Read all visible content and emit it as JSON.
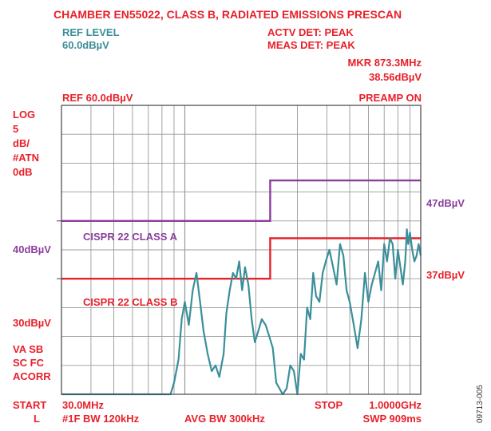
{
  "header": {
    "title": "CHAMBER EN55022, CLASS B, RADIATED EMISSIONS PRESCAN",
    "ref_level_label": "REF LEVEL",
    "ref_level_value": "60.0dBµV",
    "actv_det": "ACTV DET: PEAK",
    "meas_det": "MEAS DET: PEAK",
    "mkr_freq": "MKR 873.3MHz",
    "mkr_level": "38.56dBµV",
    "ref": "REF 60.0dBµV",
    "preamp": "PREAMP ON"
  },
  "left_panel": {
    "scale_lines": [
      "LOG",
      "5",
      "dB/",
      "#ATN",
      "0dB"
    ],
    "mode_lines": [
      "VA SB",
      "SC FC",
      "ACORR"
    ]
  },
  "footer": {
    "start_label": "START",
    "start_value": "30.0MHz",
    "l_label": "L",
    "rbw": "#1F BW 120kHz",
    "avg_bw": "AVG BW 300kHz",
    "stop_label": "STOP",
    "stop_value": "1.0000GHz",
    "sweep": "SWP 909ms"
  },
  "figure_id": "09713-005",
  "colors": {
    "header_text": "#e8202a",
    "ref_level_text": "#3a8f9a",
    "class_a": "#8b3f9e",
    "class_b": "#e8202a",
    "trace": "#3a8f9a",
    "grid": "#9a9a9a",
    "border": "#444444"
  },
  "chart_data": {
    "type": "line",
    "x_scale": "log",
    "xlim": [
      30,
      1000
    ],
    "ylim": [
      10,
      60
    ],
    "x_unit": "MHz",
    "y_unit": "dBµV",
    "grid": true,
    "series": [
      {
        "name": "CISPR 22 CLASS A",
        "color": "#8b3f9e",
        "x": [
          30,
          230,
          230,
          1000
        ],
        "y": [
          40,
          40,
          47,
          47
        ]
      },
      {
        "name": "CISPR 22 CLASS B",
        "color": "#e8202a",
        "x": [
          30,
          230,
          230,
          1000
        ],
        "y": [
          30,
          30,
          37,
          37
        ]
      },
      {
        "color": "#3a8f9a",
        "x": [
          30,
          40,
          55,
          70,
          87,
          90,
          94,
          97,
          100,
          104,
          108,
          112,
          116,
          120,
          125,
          130,
          135,
          140,
          146,
          150,
          155,
          160,
          165,
          170,
          175,
          180,
          186,
          192,
          198,
          205,
          212,
          220,
          228,
          236,
          244,
          252,
          260,
          270,
          280,
          290,
          300,
          310,
          320,
          330,
          340,
          350,
          360,
          372,
          384,
          396,
          410,
          425,
          440,
          455,
          470,
          485,
          500,
          520,
          540,
          560,
          580,
          600,
          620,
          640,
          660,
          680,
          700,
          720,
          740,
          760,
          780,
          800,
          820,
          840,
          860,
          873.3,
          885,
          900,
          920,
          940,
          960,
          980,
          1000
        ],
        "y": [
          10,
          10,
          10,
          10,
          10,
          12,
          16,
          23,
          26,
          22,
          28,
          31,
          26,
          21,
          17,
          14,
          15,
          13,
          17,
          24,
          28,
          31,
          30,
          33,
          28,
          32,
          29,
          23,
          19,
          21,
          23,
          22,
          20,
          18,
          12,
          11,
          10,
          11,
          15,
          14,
          10,
          17,
          16,
          25,
          23,
          31,
          27,
          26,
          31,
          33,
          35,
          32,
          29,
          36,
          34,
          28,
          26,
          22,
          18,
          23,
          31,
          26,
          29,
          31,
          33,
          28,
          36,
          33,
          37,
          36,
          30,
          35,
          32,
          29,
          33,
          38.56,
          36,
          38,
          35,
          33,
          34,
          36,
          34
        ]
      }
    ],
    "annotations": [
      {
        "text": "CISPR 22 CLASS A"
      },
      {
        "text": "CISPR 22 CLASS B"
      },
      {
        "text": "40dBµV"
      },
      {
        "text": "30dBµV"
      },
      {
        "text": "47dBµV"
      },
      {
        "text": "37dBµV"
      }
    ]
  }
}
